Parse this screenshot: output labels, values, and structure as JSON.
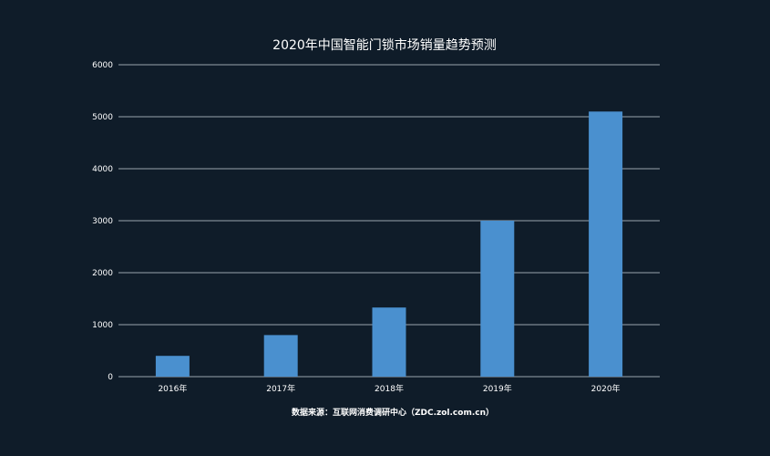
{
  "chart_data": {
    "type": "bar",
    "title": "2020年中国智能门锁市场销量趋势预测",
    "categories": [
      "2016年",
      "2017年",
      "2018年",
      "2019年",
      "2020年"
    ],
    "values": [
      400,
      800,
      1330,
      3000,
      5100
    ],
    "ylim": [
      0,
      6000
    ],
    "yticks": [
      0,
      1000,
      2000,
      3000,
      4000,
      5000,
      6000
    ],
    "grid": true,
    "bar_color": "#4a90cf",
    "source": "数据来源：互联网消费调研中心（ZDC.zol.com.cn）"
  }
}
